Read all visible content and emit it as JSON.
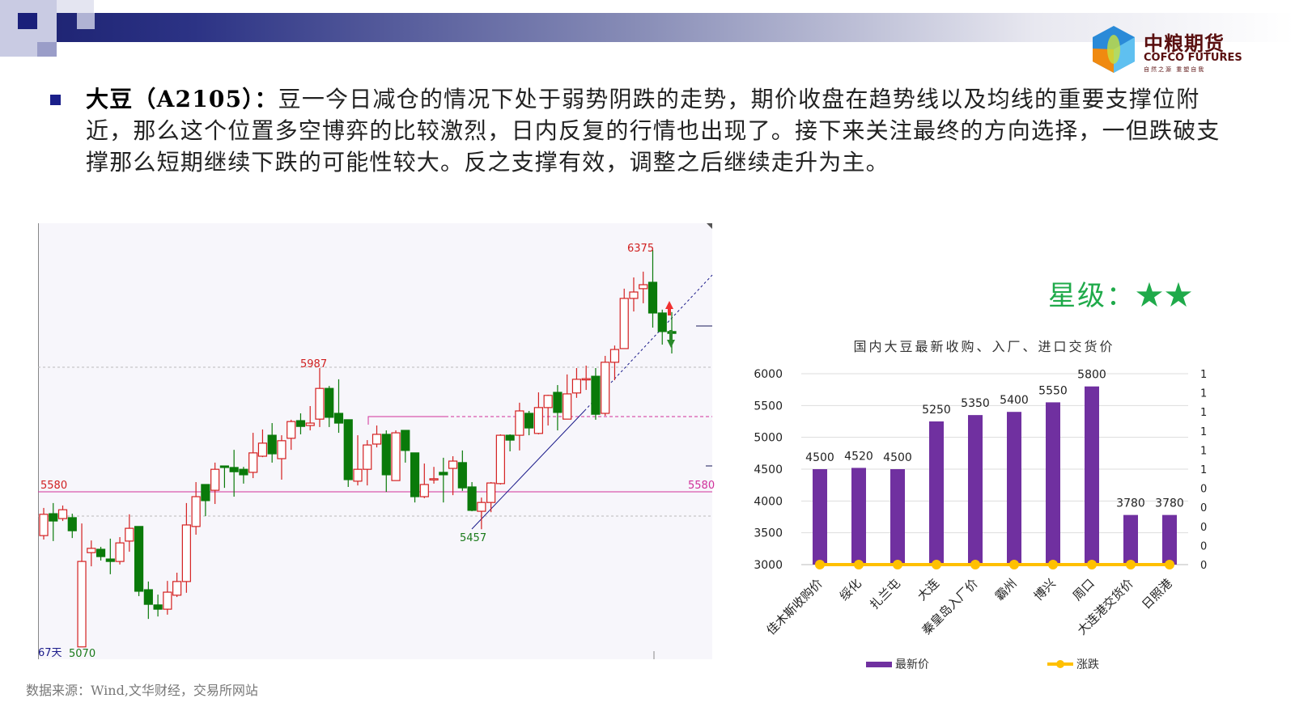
{
  "header": {
    "logo_cn": "中粮期货",
    "logo_en": "COFCO FUTURES",
    "logo_sub": "自然之源 重塑自我"
  },
  "body": {
    "title": "大豆（A2105）：",
    "text": "豆一今日减仓的情况下处于弱势阴跌的走势，期价收盘在趋势线以及均线的重要支撑位附近，那么这个位置多空博弈的比较激烈，日内反复的行情也出现了。接下来关注最终的方向选择，一但跌破支撑那么短期继续下跌的可能性较大。反之支撑有效，调整之后继续走升为主。"
  },
  "rating": {
    "label": "星级：",
    "stars": "★★",
    "color": "#1faa4a"
  },
  "source": "数据来源：Wind,文华财经，交易所网站",
  "chart_data": [
    {
      "type": "candlestick",
      "annotations": {
        "high_label": "6375",
        "mid_high_label": "5987",
        "low_label": "5457",
        "min_label": "5070",
        "support_label_left": "5580",
        "support_label_right": "5580",
        "period_label": "67天"
      },
      "support_level": 5580,
      "colors": {
        "up": "#d42020",
        "down": "#0a7a0a",
        "support": "#d0309a",
        "trend": "#1a1a8a"
      },
      "ohlc": [
        [
          5436,
          5506,
          5527,
          5423
        ],
        [
          5508,
          5484,
          5543,
          5418
        ],
        [
          5492,
          5521,
          5535,
          5484
        ],
        [
          5495,
          5452,
          5508,
          5428
        ],
        [
          5070,
          5351,
          5476,
          5070
        ],
        [
          5380,
          5394,
          5420,
          5335
        ],
        [
          5391,
          5367,
          5399,
          5354
        ],
        [
          5359,
          5351,
          5426,
          5309
        ],
        [
          5351,
          5412,
          5431,
          5341
        ],
        [
          5418,
          5460,
          5506,
          5383
        ],
        [
          5466,
          5253,
          5466,
          5237
        ],
        [
          5258,
          5210,
          5285,
          5162
        ],
        [
          5208,
          5194,
          5242,
          5170
        ],
        [
          5194,
          5250,
          5287,
          5176
        ],
        [
          5240,
          5285,
          5314,
          5234
        ],
        [
          5285,
          5471,
          5543,
          5248
        ],
        [
          5466,
          5564,
          5612,
          5439
        ],
        [
          5604,
          5551,
          5604,
          5500
        ],
        [
          5585,
          5654,
          5676,
          5540
        ],
        [
          5665,
          5660,
          5665,
          5593
        ],
        [
          5660,
          5646,
          5718,
          5564
        ],
        [
          5654,
          5636,
          5662,
          5607
        ],
        [
          5644,
          5708,
          5774,
          5625
        ],
        [
          5697,
          5740,
          5785,
          5694
        ],
        [
          5766,
          5705,
          5806,
          5676
        ],
        [
          5689,
          5748,
          5766,
          5620
        ],
        [
          5756,
          5811,
          5817,
          5718
        ],
        [
          5814,
          5795,
          5838,
          5769
        ],
        [
          5798,
          5806,
          5862,
          5782
        ],
        [
          5819,
          5920,
          5987,
          5793
        ],
        [
          5920,
          5825,
          5928,
          5793
        ],
        [
          5838,
          5806,
          5950,
          5774
        ],
        [
          5817,
          5620,
          5817,
          5596
        ],
        [
          5615,
          5654,
          5766,
          5601
        ],
        [
          5654,
          5734,
          5750,
          5601
        ],
        [
          5737,
          5769,
          5798,
          5726
        ],
        [
          5769,
          5636,
          5782,
          5580
        ],
        [
          5617,
          5774,
          5782,
          5617
        ],
        [
          5782,
          5716,
          5782,
          5676
        ],
        [
          5708,
          5564,
          5708,
          5545
        ],
        [
          5564,
          5604,
          5673,
          5559
        ],
        [
          5623,
          5623,
          5662,
          5607
        ],
        [
          5644,
          5636,
          5692,
          5545
        ],
        [
          5657,
          5681,
          5697,
          5569
        ],
        [
          5676,
          5593,
          5716,
          5583
        ],
        [
          5596,
          5519,
          5612,
          5516
        ],
        [
          5516,
          5545,
          5561,
          5457
        ],
        [
          5545,
          5609,
          5612,
          5513
        ],
        [
          5607,
          5766,
          5769,
          5604
        ],
        [
          5766,
          5750,
          5769,
          5713
        ],
        [
          5766,
          5846,
          5873,
          5716
        ],
        [
          5838,
          5790,
          5846,
          5766
        ],
        [
          5772,
          5857,
          5907,
          5769
        ],
        [
          5857,
          5897,
          5899,
          5798
        ],
        [
          5907,
          5841,
          5931,
          5782
        ],
        [
          5819,
          5902,
          5966,
          5819
        ],
        [
          5905,
          5950,
          5987,
          5889
        ],
        [
          5950,
          5952,
          5995,
          5915
        ],
        [
          5960,
          5835,
          5987,
          5817
        ],
        [
          5838,
          6006,
          6027,
          5830
        ],
        [
          6006,
          6048,
          6061,
          5947
        ],
        [
          6051,
          6216,
          6248,
          6051
        ],
        [
          6216,
          6237,
          6285,
          6173
        ],
        [
          6248,
          6261,
          6304,
          6200
        ],
        [
          6269,
          6168,
          6375,
          6120
        ],
        [
          6168,
          6107,
          6179,
          6064
        ],
        [
          6107,
          6101,
          6171,
          6035
        ]
      ]
    },
    {
      "type": "bar",
      "title": "国内大豆最新收购、入厂、进口交货价",
      "categories": [
        "佳木斯收购价",
        "绥化",
        "扎兰屯",
        "大连",
        "秦皇岛入厂价",
        "霸州",
        "博兴",
        "周口",
        "大连港交货价",
        "日照港"
      ],
      "series": [
        {
          "name": "最新价",
          "type": "bar",
          "values": [
            4500,
            4520,
            4500,
            5250,
            5350,
            5400,
            5550,
            5800,
            3780,
            3780
          ],
          "color": "#7030a0"
        },
        {
          "name": "涨跌",
          "type": "line",
          "axis": "right",
          "values": [
            0,
            0,
            0,
            0,
            0,
            0,
            0,
            0,
            0,
            0
          ],
          "color": "#ffc000"
        }
      ],
      "ylim": [
        3000,
        6000
      ],
      "yticks": [
        "6000",
        "5500",
        "5000",
        "4500",
        "4000",
        "3500",
        "3000"
      ],
      "y2ticks": [
        "1",
        "1",
        "1",
        "1",
        "1",
        "1",
        "0",
        "0",
        "0",
        "0",
        "0"
      ],
      "legend": "bottom",
      "grid": true
    }
  ]
}
